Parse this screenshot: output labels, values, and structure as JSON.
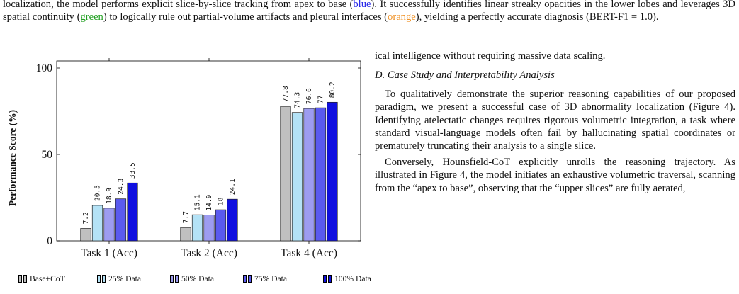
{
  "top_text": {
    "part1": "localization, the model performs explicit slice-by-slice tracking from apex to base (",
    "blue": "blue",
    "part2": "). It successfully identifies linear streaky opacities in the lower lobes and leverages 3D spatial continuity (",
    "green": "green",
    "part3": ") to logically rule out partial-volume artifacts and pleural interfaces (",
    "orange": "orange",
    "part4": "), yielding a perfectly accurate diagnosis (BERT-F1 = 1.0)."
  },
  "right_column": {
    "line1": "ical intelligence without requiring massive data scaling.",
    "section_heading": "D.  Case Study and Interpretability Analysis",
    "para1": "To qualitatively demonstrate the superior reasoning capabilities of our proposed paradigm, we present a successful case of 3D abnormality localization (Figure 4). Identifying atelectatic changes requires rigorous volumetric integration, a task where standard visual-language models often fail by hallucinating spatial coordinates or prematurely truncating their analysis to a single slice.",
    "para2": "Conversely, Hounsfield-CoT explicitly unrolls the reasoning trajectory. As illustrated in Figure 4, the model initiates an exhaustive volumetric traversal, scanning from the “apex to base”, observing that the “upper slices” are fully aerated,"
  },
  "chart_data": {
    "type": "bar",
    "categories": [
      "Task 1 (Acc)",
      "Task 2 (Acc)",
      "Task 4 (Acc)"
    ],
    "series": [
      {
        "name": "Base+CoT",
        "values": [
          7.2,
          7.7,
          77.8
        ],
        "labels": [
          "7.2",
          "7.7",
          "77.8"
        ],
        "color": "#c0c0c0"
      },
      {
        "name": "25% Data",
        "values": [
          20.5,
          15.1,
          74.3
        ],
        "labels": [
          "20.5",
          "15.1",
          "74.3"
        ],
        "color": "#b4e2f6"
      },
      {
        "name": "50% Data",
        "values": [
          18.9,
          14.9,
          76.6
        ],
        "labels": [
          "18.9",
          "14.9",
          "76.6"
        ],
        "color": "#9d9cf0"
      },
      {
        "name": "75% Data",
        "values": [
          24.3,
          18,
          77
        ],
        "labels": [
          "24.3",
          "18",
          "77"
        ],
        "color": "#5a5aef"
      },
      {
        "name": "100% Data",
        "values": [
          33.5,
          24.1,
          80.2
        ],
        "labels": [
          "33.5",
          "24.1",
          "80.2"
        ],
        "color": "#1010e0"
      }
    ],
    "ylabel": "Performance Score (%)",
    "xlabel": "",
    "ylim": [
      0,
      100
    ],
    "yticks": [
      "0",
      "50",
      "100"
    ],
    "grid": false,
    "legend_position": "bottom"
  }
}
